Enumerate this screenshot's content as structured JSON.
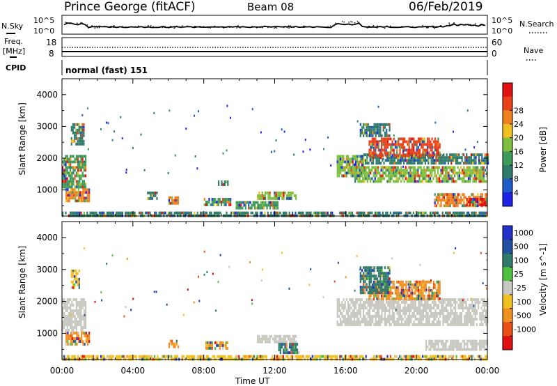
{
  "header": {
    "station": "Prince George (fitACF)",
    "beam": "Beam 08",
    "date": "06/Feb/2019"
  },
  "strip_panels": {
    "nsky_label": "N.Sky",
    "nsky_ticks": [
      "10^5",
      "10^0"
    ],
    "nsearch_label": "N.Search",
    "nsearch_ticks": [
      "10^5",
      "10^0"
    ],
    "freq_label_1": "Freq.",
    "freq_label_2": "[MHz]",
    "freq_ticks": [
      "18",
      "8"
    ],
    "nave_label": "Nave",
    "nave_ticks": [
      "60",
      "0"
    ],
    "cpid_label": "CPID",
    "cpid_text": "normal (fast) 151"
  },
  "x_axis": {
    "label": "Time UT",
    "ticks": [
      "00:00",
      "04:00",
      "08:00",
      "12:00",
      "16:00",
      "20:00",
      "00:00"
    ]
  },
  "colors": {
    "frame": "#000000",
    "ground_scatter": "#c8c8c0",
    "power_scale": [
      "#1e22e6",
      "#1e5ac8",
      "#2f7a6a",
      "#3f9a5a",
      "#7fbf3f",
      "#f0c020",
      "#f08020",
      "#e84018",
      "#e01010"
    ],
    "velocity_scale": [
      "#2030c8",
      "#2050a0",
      "#2f7a6a",
      "#50c040",
      "#c8c8c0",
      "#f0c020",
      "#f09020",
      "#e85018",
      "#e01010"
    ]
  },
  "chart_data": [
    {
      "type": "heatmap",
      "title": "Power",
      "ylabel": "Slant Range [km]",
      "yticks": [
        1000,
        2000,
        3000,
        4000
      ],
      "ylim": [
        180,
        4500
      ],
      "xlim_hours": [
        0,
        24
      ],
      "colorbar_label": "Power [dB]",
      "colorbar_ticks": [
        "4",
        "8",
        "12",
        "16",
        "20",
        "24",
        "28"
      ],
      "colorbar_range": [
        0,
        30
      ],
      "regions": [
        {
          "t0": 0.0,
          "t1": 1.3,
          "r0": 1100,
          "r1": 2100,
          "value": 12
        },
        {
          "t0": 0.2,
          "t1": 1.5,
          "r0": 650,
          "r1": 1050,
          "value": 20
        },
        {
          "t0": 0.5,
          "t1": 1.2,
          "r0": 2400,
          "r1": 3100,
          "value": 8
        },
        {
          "t0": 4.8,
          "t1": 5.4,
          "r0": 750,
          "r1": 950,
          "value": 8
        },
        {
          "t0": 6.0,
          "t1": 6.6,
          "r0": 550,
          "r1": 800,
          "value": 20
        },
        {
          "t0": 8.0,
          "t1": 9.5,
          "r0": 500,
          "r1": 750,
          "value": 12
        },
        {
          "t0": 8.8,
          "t1": 9.4,
          "r0": 1150,
          "r1": 1300,
          "value": 8
        },
        {
          "t0": 11.0,
          "t1": 13.2,
          "r0": 750,
          "r1": 950,
          "value": 16
        },
        {
          "t0": 9.8,
          "t1": 12.2,
          "r0": 400,
          "r1": 650,
          "value": 12
        },
        {
          "t0": 15.5,
          "t1": 17.0,
          "r0": 1400,
          "r1": 2100,
          "value": 16
        },
        {
          "t0": 16.5,
          "t1": 24.0,
          "r0": 1300,
          "r1": 1750,
          "value": 16
        },
        {
          "t0": 17.0,
          "t1": 24.0,
          "r0": 1850,
          "r1": 2150,
          "value": 8
        },
        {
          "t0": 17.3,
          "t1": 21.3,
          "r0": 2050,
          "r1": 2650,
          "value": 24
        },
        {
          "t0": 16.8,
          "t1": 18.5,
          "r0": 2700,
          "r1": 3100,
          "value": 8
        },
        {
          "t0": 21.0,
          "t1": 24.0,
          "r0": 500,
          "r1": 900,
          "value": 20
        },
        {
          "t0": 22.8,
          "t1": 24.0,
          "r0": 500,
          "r1": 750,
          "value": 28
        },
        {
          "t0": 0.0,
          "t1": 24.0,
          "r0": 180,
          "r1": 320,
          "value": 8
        }
      ]
    },
    {
      "type": "heatmap",
      "title": "Velocity",
      "ylabel": "Slant Range [km]",
      "yticks": [
        1000,
        2000,
        3000,
        4000
      ],
      "ylim": [
        180,
        4500
      ],
      "xlim_hours": [
        0,
        24
      ],
      "colorbar_label": "Velocity [m s^-1]",
      "colorbar_ticks": [
        "1000",
        "500",
        "100",
        "25",
        "-25",
        "-100",
        "-500",
        "-1000"
      ],
      "regions": [
        {
          "t0": 0.0,
          "t1": 1.3,
          "r0": 1100,
          "r1": 2100,
          "value": "gs"
        },
        {
          "t0": 0.2,
          "t1": 1.5,
          "r0": 650,
          "r1": 1050,
          "value": -300
        },
        {
          "t0": 0.5,
          "t1": 1.0,
          "r0": 2400,
          "r1": 3000,
          "value": -100
        },
        {
          "t0": 6.0,
          "t1": 6.6,
          "r0": 550,
          "r1": 800,
          "value": -300
        },
        {
          "t0": 8.0,
          "t1": 9.3,
          "r0": 500,
          "r1": 750,
          "value": -300
        },
        {
          "t0": 11.0,
          "t1": 13.2,
          "r0": 750,
          "r1": 950,
          "value": "gs"
        },
        {
          "t0": 12.2,
          "t1": 13.4,
          "r0": 400,
          "r1": 700,
          "value": 150
        },
        {
          "t0": 15.5,
          "t1": 24.0,
          "r0": 1300,
          "r1": 2100,
          "value": "gs"
        },
        {
          "t0": 17.3,
          "t1": 21.3,
          "r0": 2050,
          "r1": 2650,
          "value": -200
        },
        {
          "t0": 16.8,
          "t1": 18.5,
          "r0": 2300,
          "r1": 3100,
          "value": 150
        },
        {
          "t0": 20.5,
          "t1": 24.0,
          "r0": 500,
          "r1": 800,
          "value": "gs"
        },
        {
          "t0": 0.0,
          "t1": 24.0,
          "r0": 180,
          "r1": 320,
          "value": -50
        }
      ]
    }
  ]
}
